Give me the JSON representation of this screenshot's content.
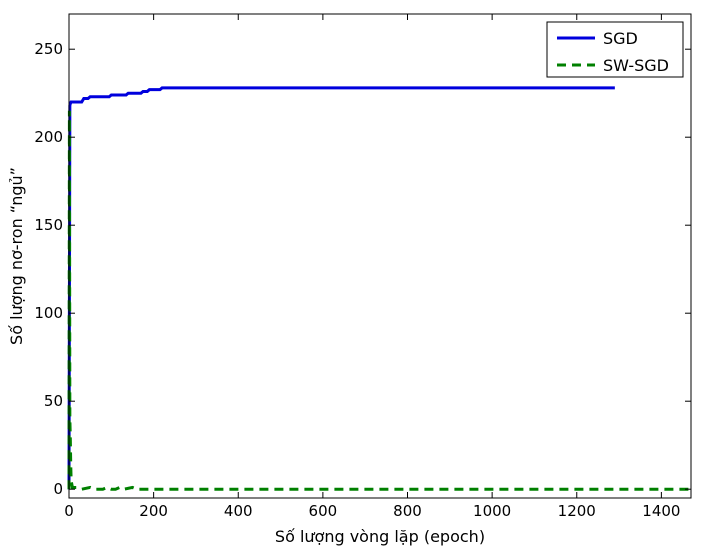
{
  "chart_data": {
    "type": "line",
    "title": "",
    "xlabel": "Số lượng vòng lặp (epoch)",
    "ylabel": "Số lượng nơ-ron “ngủ”",
    "xlim": [
      0,
      1470
    ],
    "ylim": [
      -5,
      270
    ],
    "xticks": [
      0,
      200,
      400,
      600,
      800,
      1000,
      1200,
      1400
    ],
    "yticks": [
      0,
      50,
      100,
      150,
      200,
      250
    ],
    "grid": false,
    "legend_position": "top-right",
    "series": [
      {
        "name": "SGD",
        "color": "#0000dd",
        "style": "solid",
        "x": [
          0,
          2,
          3,
          5,
          30,
          35,
          45,
          50,
          95,
          100,
          135,
          140,
          170,
          175,
          185,
          190,
          215,
          220,
          1290
        ],
        "y": [
          0,
          218,
          219,
          220,
          220,
          222,
          222,
          223,
          223,
          224,
          224,
          225,
          225,
          226,
          226,
          227,
          227,
          228,
          228
        ]
      },
      {
        "name": "SW-SGD",
        "color": "#008000",
        "style": "dashed",
        "x": [
          0,
          1,
          2,
          3,
          4,
          5,
          8,
          20,
          30,
          50,
          60,
          80,
          90,
          100,
          110,
          120,
          130,
          150,
          160,
          200,
          220,
          1470
        ],
        "y": [
          0,
          215,
          40,
          30,
          15,
          5,
          1,
          1,
          0,
          1,
          0,
          0,
          1,
          0,
          0,
          1,
          0,
          1,
          0,
          0,
          0,
          0
        ]
      }
    ]
  }
}
